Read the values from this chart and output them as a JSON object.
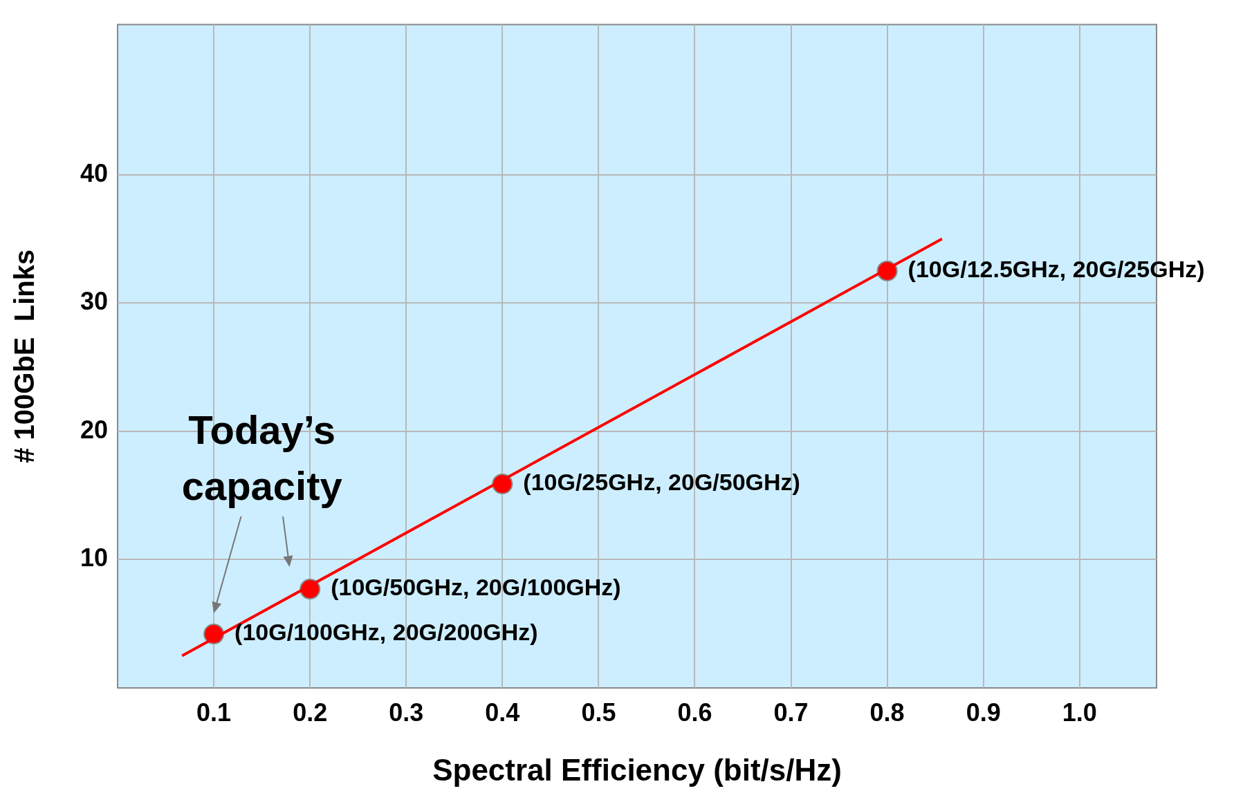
{
  "chart_data": {
    "type": "scatter",
    "xlabel": "Spectral Efficiency (bit/s/Hz)",
    "ylabel": "# 100GbE  Links",
    "xlim": [
      0,
      1.08
    ],
    "ylim": [
      0,
      51.7
    ],
    "xticks": [
      0.1,
      0.2,
      0.3,
      0.4,
      0.5,
      0.6,
      0.7,
      0.8,
      0.9,
      {
        "value": 1,
        "label": "1.0"
      }
    ],
    "yticks": [
      10,
      20,
      30,
      40
    ],
    "grid": true,
    "legend": false,
    "marker": "circle",
    "series": [
      {
        "type": "line",
        "color": "#ff0000",
        "x": [
          0.067,
          0.857
        ],
        "values": [
          2.5,
          35
        ],
        "marker": "none",
        "line_style": "solid"
      },
      {
        "type": "scatter",
        "color": "#ff0000",
        "x": [
          0.1,
          0.2,
          0.4,
          0.8
        ],
        "values": [
          4.2,
          7.7,
          15.9,
          32.5
        ]
      }
    ],
    "annotations": [
      {
        "text": "(10G/100GHz, 20G/200GHz)",
        "x": 0.1,
        "y": 4.2
      },
      {
        "text": "(10G/50GHz, 20G/100GHz)",
        "x": 0.2,
        "y": 7.7
      },
      {
        "text": "(10G/25GHz, 20G/50GHz)",
        "x": 0.4,
        "y": 15.9
      },
      {
        "text": "(10G/12.5GHz, 20G/25GHz)",
        "x": 0.8,
        "y": 32.5
      },
      "Today’s capacity"
    ]
  }
}
